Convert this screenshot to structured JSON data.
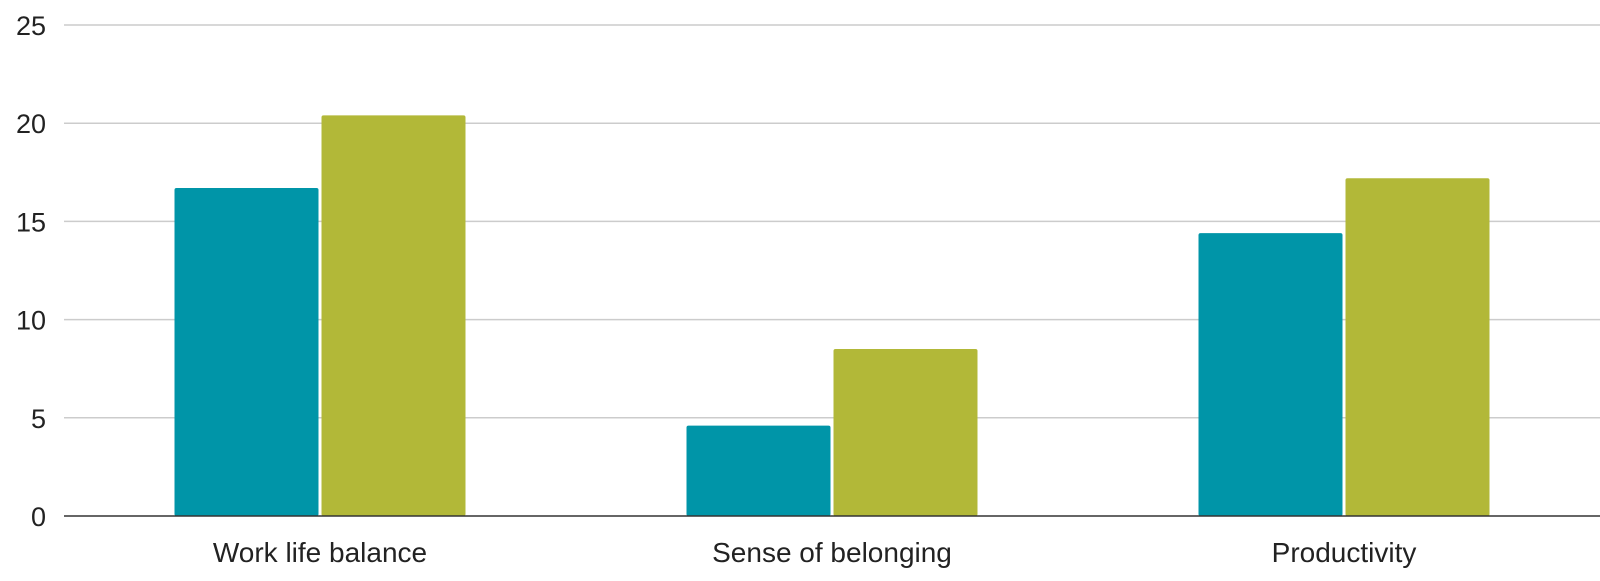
{
  "chart_data": {
    "type": "bar",
    "title": "",
    "xlabel": "",
    "ylabel": "",
    "categories": [
      "Work life balance",
      "Sense of belonging",
      "Productivity"
    ],
    "series": [
      {
        "values": [
          16.7,
          4.6,
          14.4
        ],
        "color": "#0095A8"
      },
      {
        "values": [
          20.4,
          8.5,
          17.2
        ],
        "color": "#B2B838"
      }
    ],
    "ylim": [
      0,
      25
    ],
    "yticks": [
      0,
      5,
      10,
      15,
      20,
      25
    ],
    "grid": true,
    "legend": "none"
  },
  "colors": {
    "gridline": "#CCCCCC",
    "axis": "#333333",
    "text": "#222222"
  }
}
